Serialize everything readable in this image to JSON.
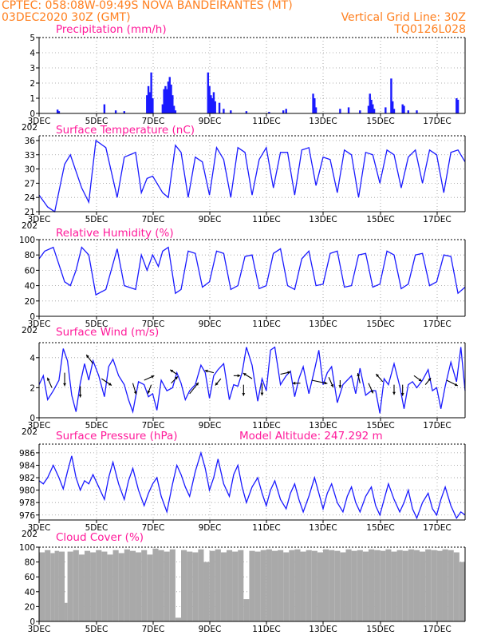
{
  "header": {
    "left_line1": "CPTEC:   058:08W-09:49S   NOVA BANDEIRANTES (MT)",
    "left_line2": "03DEC2020 30Z (GMT)",
    "right_line2": "Vertical Grid Line: 30Z",
    "right_line3": "TQ0126L028"
  },
  "colors": {
    "header": "#ff7f1e",
    "title": "#ff1a9a",
    "series": "#1a1aff",
    "cloud": "#a9a9a9"
  },
  "x_axis": {
    "tick_labels": [
      "3DEC",
      "5DEC",
      "7DEC",
      "9DEC",
      "11DEC",
      "13DEC",
      "15DEC",
      "17DEC"
    ],
    "year_fragment": "202"
  },
  "chart_data": [
    {
      "type": "bar",
      "title": "Precipitation (mm/h)",
      "ylim": [
        0,
        5
      ],
      "yticks": [
        "0",
        "1",
        "2",
        "3",
        "4",
        "5"
      ],
      "x_range_days": [
        0,
        15
      ],
      "bars": [
        [
          0.65,
          0.25
        ],
        [
          0.7,
          0.15
        ],
        [
          2.3,
          0.6
        ],
        [
          2.7,
          0.2
        ],
        [
          3.0,
          0.15
        ],
        [
          3.9,
          0.1
        ],
        [
          3.8,
          1.2
        ],
        [
          3.85,
          1.8
        ],
        [
          3.9,
          1.4
        ],
        [
          3.95,
          2.7
        ],
        [
          4.0,
          1.0
        ],
        [
          4.35,
          0.6
        ],
        [
          4.4,
          1.6
        ],
        [
          4.45,
          1.8
        ],
        [
          4.5,
          1.6
        ],
        [
          4.55,
          2.1
        ],
        [
          4.6,
          2.4
        ],
        [
          4.65,
          1.9
        ],
        [
          4.7,
          1.2
        ],
        [
          4.75,
          0.5
        ],
        [
          4.8,
          0.2
        ],
        [
          5.95,
          2.7
        ],
        [
          6.0,
          1.8
        ],
        [
          6.05,
          1.2
        ],
        [
          6.1,
          1.0
        ],
        [
          6.15,
          1.4
        ],
        [
          6.2,
          0.8
        ],
        [
          6.35,
          0.7
        ],
        [
          6.5,
          0.3
        ],
        [
          6.75,
          0.2
        ],
        [
          7.3,
          0.15
        ],
        [
          8.1,
          0.1
        ],
        [
          8.6,
          0.2
        ],
        [
          8.7,
          0.3
        ],
        [
          9.65,
          1.3
        ],
        [
          9.7,
          1.0
        ],
        [
          9.75,
          0.4
        ],
        [
          10.6,
          0.3
        ],
        [
          10.9,
          0.4
        ],
        [
          11.3,
          0.2
        ],
        [
          11.6,
          0.5
        ],
        [
          11.65,
          1.3
        ],
        [
          11.7,
          0.9
        ],
        [
          11.75,
          0.6
        ],
        [
          11.8,
          0.3
        ],
        [
          12.2,
          0.4
        ],
        [
          12.4,
          2.3
        ],
        [
          12.45,
          0.8
        ],
        [
          12.5,
          0.3
        ],
        [
          12.8,
          0.6
        ],
        [
          12.85,
          0.5
        ],
        [
          13.0,
          0.2
        ],
        [
          13.3,
          0.2
        ],
        [
          14.7,
          1.0
        ],
        [
          14.75,
          0.9
        ]
      ]
    },
    {
      "type": "line",
      "title": "Surface Temperature (nC)",
      "ylim": [
        21,
        37
      ],
      "yticks": [
        "21",
        "24",
        "27",
        "30",
        "33",
        "36"
      ],
      "x_range_days": [
        0,
        15
      ],
      "x": [
        0.0,
        0.3,
        0.55,
        0.9,
        1.1,
        1.5,
        1.75,
        2.0,
        2.35,
        2.75,
        3.0,
        3.4,
        3.6,
        3.8,
        4.0,
        4.35,
        4.55,
        4.8,
        5.0,
        5.25,
        5.5,
        5.75,
        6.0,
        6.25,
        6.5,
        6.75,
        7.0,
        7.25,
        7.5,
        7.75,
        8.0,
        8.25,
        8.5,
        8.75,
        9.0,
        9.25,
        9.5,
        9.75,
        10.0,
        10.25,
        10.5,
        10.75,
        11.0,
        11.25,
        11.5,
        11.75,
        12.0,
        12.25,
        12.5,
        12.75,
        13.0,
        13.25,
        13.5,
        13.75,
        14.0,
        14.25,
        14.5,
        14.75,
        15.0
      ],
      "y": [
        24.5,
        22.0,
        21.0,
        31.0,
        33.0,
        26.0,
        23.0,
        36.0,
        34.5,
        24.0,
        32.5,
        33.5,
        25.0,
        28.0,
        28.5,
        25.0,
        24.0,
        35.0,
        33.5,
        24.0,
        32.5,
        31.5,
        24.5,
        34.5,
        32.0,
        24.0,
        34.5,
        33.5,
        24.5,
        32.0,
        34.5,
        26.0,
        33.5,
        33.5,
        24.5,
        34.0,
        34.5,
        26.5,
        32.5,
        32.0,
        25.0,
        34.0,
        33.0,
        24.0,
        33.5,
        33.0,
        27.0,
        34.0,
        33.0,
        26.0,
        32.5,
        34.0,
        27.0,
        34.0,
        33.0,
        25.0,
        33.5,
        34.0,
        31.5
      ]
    },
    {
      "type": "line",
      "title": "Relative Humidity (%)",
      "ylim": [
        0,
        100
      ],
      "yticks": [
        "0",
        "20",
        "40",
        "60",
        "80",
        "100"
      ],
      "x_range_days": [
        0,
        15
      ],
      "x": [
        0.0,
        0.2,
        0.5,
        0.9,
        1.1,
        1.3,
        1.5,
        1.75,
        2.0,
        2.35,
        2.75,
        3.0,
        3.4,
        3.6,
        3.8,
        4.0,
        4.2,
        4.35,
        4.55,
        4.8,
        5.0,
        5.25,
        5.5,
        5.75,
        6.0,
        6.25,
        6.5,
        6.75,
        7.0,
        7.25,
        7.5,
        7.75,
        8.0,
        8.25,
        8.5,
        8.75,
        9.0,
        9.25,
        9.5,
        9.75,
        10.0,
        10.25,
        10.5,
        10.75,
        11.0,
        11.25,
        11.5,
        11.75,
        12.0,
        12.25,
        12.5,
        12.75,
        13.0,
        13.25,
        13.5,
        13.75,
        14.0,
        14.25,
        14.5,
        14.75,
        15.0
      ],
      "y": [
        75,
        85,
        90,
        45,
        40,
        60,
        90,
        80,
        28,
        35,
        88,
        40,
        35,
        80,
        60,
        80,
        65,
        85,
        90,
        30,
        35,
        85,
        82,
        38,
        45,
        85,
        82,
        35,
        40,
        78,
        80,
        36,
        40,
        82,
        88,
        40,
        35,
        75,
        85,
        40,
        42,
        82,
        85,
        38,
        40,
        80,
        82,
        38,
        42,
        85,
        80,
        36,
        42,
        80,
        82,
        40,
        45,
        80,
        78,
        30,
        38
      ]
    },
    {
      "type": "line",
      "title": "Surface Wind (m/s)",
      "ylim": [
        0,
        5
      ],
      "yticks": [
        "0",
        "2",
        "4"
      ],
      "x_range_days": [
        0,
        15
      ],
      "x": [
        0.0,
        0.15,
        0.3,
        0.5,
        0.7,
        0.85,
        1.0,
        1.15,
        1.3,
        1.45,
        1.6,
        1.75,
        1.9,
        2.1,
        2.3,
        2.45,
        2.6,
        2.8,
        3.0,
        3.15,
        3.3,
        3.5,
        3.7,
        3.85,
        4.0,
        4.15,
        4.3,
        4.5,
        4.7,
        4.85,
        5.0,
        5.15,
        5.3,
        5.5,
        5.7,
        5.85,
        6.0,
        6.15,
        6.3,
        6.5,
        6.7,
        6.85,
        7.0,
        7.15,
        7.3,
        7.5,
        7.7,
        7.85,
        8.0,
        8.15,
        8.3,
        8.5,
        8.7,
        8.85,
        9.0,
        9.15,
        9.3,
        9.5,
        9.7,
        9.85,
        10.0,
        10.15,
        10.3,
        10.5,
        10.7,
        10.85,
        11.0,
        11.15,
        11.3,
        11.5,
        11.7,
        11.85,
        12.0,
        12.15,
        12.3,
        12.5,
        12.7,
        12.85,
        13.0,
        13.15,
        13.3,
        13.5,
        13.7,
        13.85,
        14.0,
        14.15,
        14.3,
        14.5,
        14.7,
        14.85,
        15.0
      ],
      "y": [
        2.2,
        2.8,
        1.2,
        1.8,
        2.5,
        4.6,
        3.8,
        1.5,
        0.4,
        2.3,
        3.6,
        2.5,
        3.8,
        2.8,
        1.4,
        3.4,
        3.9,
        2.8,
        2.2,
        1.2,
        0.4,
        2.4,
        2.2,
        1.4,
        1.6,
        0.5,
        2.5,
        1.8,
        2.0,
        3.0,
        2.3,
        1.2,
        1.8,
        2.2,
        3.5,
        3.0,
        1.3,
        2.8,
        3.2,
        3.6,
        1.2,
        2.2,
        2.1,
        3.0,
        4.7,
        3.5,
        1.1,
        2.6,
        1.8,
        4.5,
        4.7,
        2.2,
        2.8,
        3.1,
        1.4,
        2.6,
        3.4,
        1.6,
        3.2,
        4.5,
        2.2,
        3.0,
        3.4,
        1.0,
        2.2,
        2.5,
        2.8,
        1.6,
        3.3,
        1.5,
        1.8,
        1.8,
        0.3,
        2.6,
        2.2,
        3.6,
        2.1,
        0.6,
        2.2,
        2.4,
        2.0,
        2.5,
        3.2,
        1.8,
        2.0,
        0.6,
        2.1,
        3.7,
        2.4,
        4.7,
        1.8
      ],
      "vectors": [
        [
          0.45,
          2.0,
          -0.4,
          0.9
        ],
        [
          0.9,
          3.0,
          0.0,
          -1.2
        ],
        [
          1.45,
          2.1,
          0.0,
          -1.0
        ],
        [
          1.9,
          3.6,
          -0.6,
          0.8
        ],
        [
          2.2,
          2.6,
          0.9,
          -0.6
        ],
        [
          3.3,
          2.3,
          0.3,
          -1.0
        ],
        [
          3.7,
          2.5,
          0.9,
          0.4
        ],
        [
          3.95,
          2.2,
          -0.3,
          -0.8
        ],
        [
          4.65,
          2.3,
          0.6,
          0.6
        ],
        [
          4.85,
          2.9,
          -0.6,
          0.4
        ],
        [
          5.3,
          1.6,
          0.8,
          1.0
        ],
        [
          6.15,
          3.0,
          -0.8,
          0.2
        ],
        [
          6.4,
          2.6,
          -0.5,
          -0.6
        ],
        [
          6.85,
          2.8,
          0.6,
          0.0
        ],
        [
          7.2,
          2.2,
          0.0,
          -1.0
        ],
        [
          7.5,
          2.6,
          -0.8,
          0.5
        ],
        [
          7.85,
          2.3,
          0.0,
          -1.1
        ],
        [
          8.5,
          2.9,
          0.9,
          0.2
        ],
        [
          9.2,
          2.3,
          -0.7,
          0.0
        ],
        [
          9.6,
          2.5,
          1.4,
          -0.3
        ],
        [
          10.2,
          2.7,
          0.4,
          -0.9
        ],
        [
          10.6,
          2.5,
          0.0,
          -0.7
        ],
        [
          11.3,
          2.3,
          -0.2,
          0.9
        ],
        [
          11.6,
          2.3,
          0.4,
          -0.9
        ],
        [
          12.1,
          2.4,
          -0.6,
          0.7
        ],
        [
          12.5,
          2.2,
          0.0,
          -0.9
        ],
        [
          12.8,
          2.2,
          0.0,
          -1.0
        ],
        [
          13.2,
          2.8,
          0.7,
          -0.5
        ],
        [
          13.6,
          2.2,
          0.5,
          0.6
        ],
        [
          14.35,
          2.5,
          1.0,
          -0.5
        ]
      ]
    },
    {
      "type": "line",
      "title": "Surface Pressure (hPa)",
      "annotation": "Model Altitude: 247.292 m",
      "ylim": [
        975.2,
        987.4
      ],
      "yticks": [
        "976",
        "978",
        "980",
        "982",
        "984",
        "986"
      ],
      "x_range_days": [
        0,
        15
      ],
      "x": [
        0.0,
        0.15,
        0.3,
        0.5,
        0.7,
        0.85,
        1.0,
        1.15,
        1.3,
        1.45,
        1.6,
        1.75,
        1.9,
        2.1,
        2.3,
        2.45,
        2.6,
        2.8,
        3.0,
        3.15,
        3.3,
        3.5,
        3.7,
        3.85,
        4.0,
        4.15,
        4.3,
        4.5,
        4.7,
        4.85,
        5.0,
        5.15,
        5.3,
        5.5,
        5.7,
        5.85,
        6.0,
        6.15,
        6.3,
        6.5,
        6.7,
        6.85,
        7.0,
        7.15,
        7.3,
        7.5,
        7.7,
        7.85,
        8.0,
        8.15,
        8.3,
        8.5,
        8.7,
        8.85,
        9.0,
        9.15,
        9.3,
        9.5,
        9.7,
        9.85,
        10.0,
        10.15,
        10.3,
        10.5,
        10.7,
        10.85,
        11.0,
        11.15,
        11.3,
        11.5,
        11.7,
        11.85,
        12.0,
        12.15,
        12.3,
        12.5,
        12.7,
        12.85,
        13.0,
        13.15,
        13.3,
        13.5,
        13.7,
        13.85,
        14.0,
        14.15,
        14.3,
        14.5,
        14.7,
        14.85,
        15.0
      ],
      "y": [
        981.5,
        981.0,
        982.0,
        984.0,
        982.0,
        980.2,
        983.0,
        985.5,
        982.0,
        980.0,
        981.5,
        981.0,
        982.5,
        980.5,
        978.5,
        982.0,
        984.5,
        981.0,
        978.5,
        981.5,
        983.5,
        980.0,
        977.5,
        979.5,
        981.0,
        982.0,
        979.0,
        976.5,
        981.0,
        984.0,
        982.5,
        980.5,
        979.0,
        983.0,
        986.0,
        983.5,
        980.0,
        982.0,
        985.0,
        981.0,
        979.0,
        982.5,
        984.0,
        980.5,
        978.0,
        980.5,
        982.0,
        979.5,
        977.5,
        980.0,
        981.5,
        978.5,
        977.0,
        979.5,
        981.0,
        978.5,
        976.5,
        979.0,
        982.0,
        979.5,
        977.0,
        979.5,
        981.0,
        978.0,
        976.5,
        979.0,
        980.5,
        978.0,
        976.5,
        979.0,
        980.5,
        977.5,
        976.0,
        978.5,
        981.0,
        978.5,
        976.5,
        978.0,
        980.0,
        977.0,
        975.5,
        978.0,
        979.5,
        977.0,
        976.0,
        978.5,
        980.5,
        977.5,
        975.5,
        976.5,
        976.0
      ]
    },
    {
      "type": "area",
      "title": "Cloud Cover (%)",
      "ylim": [
        0,
        100
      ],
      "yticks": [
        "0",
        "20",
        "40",
        "60",
        "80",
        "100"
      ],
      "x_range_days": [
        0,
        15
      ],
      "x": [
        0.0,
        0.2,
        0.4,
        0.55,
        0.7,
        0.9,
        1.0,
        1.2,
        1.4,
        1.6,
        1.8,
        2.0,
        2.2,
        2.4,
        2.6,
        2.8,
        3.0,
        3.2,
        3.4,
        3.6,
        3.8,
        4.0,
        4.2,
        4.4,
        4.6,
        4.8,
        5.0,
        5.2,
        5.4,
        5.6,
        5.8,
        6.0,
        6.2,
        6.4,
        6.6,
        6.8,
        7.0,
        7.2,
        7.4,
        7.6,
        7.8,
        8.0,
        8.2,
        8.4,
        8.6,
        8.8,
        9.0,
        9.2,
        9.4,
        9.6,
        9.8,
        10.0,
        10.2,
        10.4,
        10.6,
        10.8,
        11.0,
        11.2,
        11.4,
        11.6,
        11.8,
        12.0,
        12.2,
        12.4,
        12.6,
        12.8,
        13.0,
        13.2,
        13.4,
        13.6,
        13.8,
        14.0,
        14.2,
        14.4,
        14.6,
        14.8,
        15.0
      ],
      "y": [
        93,
        96,
        92,
        95,
        94,
        25,
        94,
        96,
        90,
        95,
        93,
        96,
        94,
        90,
        96,
        92,
        97,
        95,
        93,
        96,
        90,
        98,
        96,
        94,
        97,
        5,
        96,
        94,
        93,
        97,
        80,
        95,
        97,
        93,
        96,
        94,
        96,
        30,
        95,
        94,
        96,
        97,
        95,
        96,
        93,
        96,
        97,
        94,
        96,
        95,
        93,
        97,
        96,
        95,
        93,
        97,
        95,
        96,
        94,
        97,
        96,
        95,
        97,
        94,
        96,
        95,
        97,
        96,
        94,
        97,
        96,
        95,
        97,
        96,
        93,
        80,
        62
      ]
    }
  ]
}
